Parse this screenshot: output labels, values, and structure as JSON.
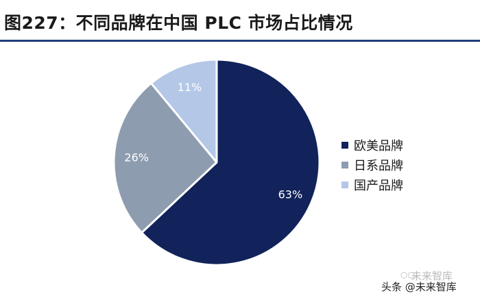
{
  "title": "图227：不同品牌在中国 PLC 市场占比情况",
  "chart_data": {
    "type": "pie",
    "start_angle_deg": -90,
    "direction": "clockwise",
    "slices": [
      {
        "label": "欧美品牌",
        "value": 63,
        "label_text": "63%",
        "color": "#11235a",
        "text_color": "#ffffff"
      },
      {
        "label": "日系品牌",
        "value": 26,
        "label_text": "26%",
        "color": "#8e9cb0",
        "text_color": "#ffffff"
      },
      {
        "label": "国产品牌",
        "value": 11,
        "label_text": "11%",
        "color": "#b4c7e7",
        "text_color": "#ffffff"
      }
    ],
    "legend": "right"
  },
  "watermark": {
    "line1": "未来智库",
    "line2": "头条 @未来智库"
  }
}
